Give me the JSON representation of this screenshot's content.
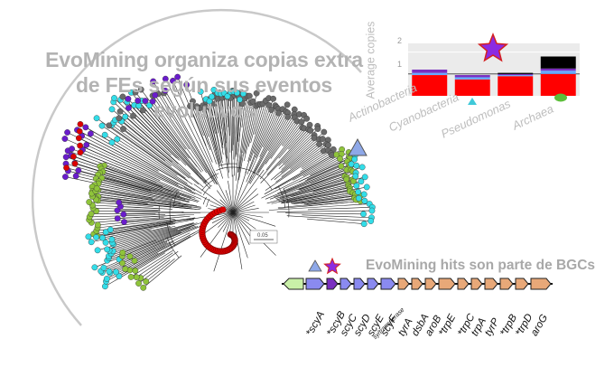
{
  "figure": {
    "title_line1": "EvoMining organiza copias extra",
    "title_line2": "de FEs según sus eventos evolutivos",
    "bgc_title": "EvoMining hits son parte de BGCs",
    "tree_scale": "0.05"
  },
  "chart_data": {
    "type": "bar",
    "ylabel": "Average copies",
    "yticks": [
      "1",
      "2"
    ],
    "ylim": [
      0,
      2.4
    ],
    "categories": [
      "Actinobacteria",
      "Cyanobacteria",
      "Pseudomonas",
      "Archaea"
    ],
    "series": [
      {
        "color": "#ff0000",
        "values": [
          0.95,
          0.75,
          0.9,
          1.0
        ]
      },
      {
        "color": "#66aaff",
        "values": [
          0.1,
          0.1,
          0.05,
          0.15
        ]
      },
      {
        "color": "#7a2fc0",
        "values": [
          0.15,
          0.1,
          0.05,
          0.1
        ]
      },
      {
        "color": "#000000",
        "values": [
          0.0,
          0.0,
          0.05,
          0.55
        ]
      }
    ],
    "marker_colors": {
      "star": "#8b2be2",
      "star_outline": "#d42020",
      "triangle": "#3fc9d9",
      "ellipse": "#5cbf3a"
    }
  },
  "gene_cluster": {
    "genes": [
      {
        "name": "",
        "color": "#c9f0a8"
      },
      {
        "name": "*scyA",
        "color": "#8a8af0"
      },
      {
        "name": "*scyB",
        "color": "#7a2fc0"
      },
      {
        "name": "scyC",
        "color": "#8a8af0"
      },
      {
        "name": "scyD",
        "color": "#8a8af0"
      },
      {
        "name": "scyE",
        "color": "#8a8af0"
      },
      {
        "name": "scyF",
        "color": "#8a8af0"
      },
      {
        "name": "tyrA",
        "color": "#e8a878"
      },
      {
        "name": "dsbA",
        "color": "#e8a878"
      },
      {
        "name": "aroB",
        "color": "#e8a878"
      },
      {
        "name": "*trpE",
        "color": "#e8a878"
      },
      {
        "name": "*trpC",
        "color": "#e8a878"
      },
      {
        "name": "trpA",
        "color": "#e8a878"
      },
      {
        "name": "tyrP",
        "color": "#e8a878"
      },
      {
        "name": "*trpB",
        "color": "#e8a878"
      },
      {
        "name": "*trpD",
        "color": "#e8a878"
      },
      {
        "name": "aroG",
        "color": "#e8a878"
      }
    ],
    "extra_label": "sy/trans/terase"
  },
  "colors": {
    "darkgray": "#6a6a6a",
    "cyan": "#33dde8",
    "green": "#8fc43a",
    "purple": "#6a1ccc",
    "red": "#dd0000",
    "triangle_marker": "#8ea8e8"
  }
}
